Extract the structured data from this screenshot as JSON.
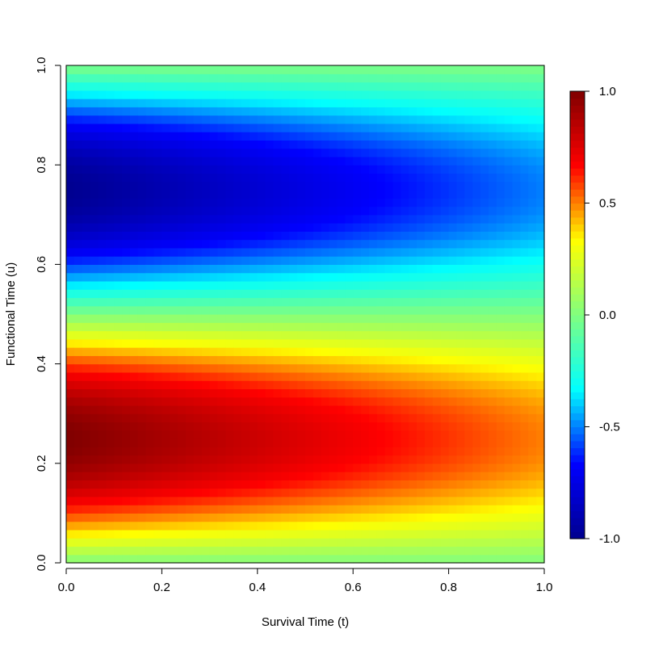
{
  "chart_data": {
    "type": "heatmap",
    "title": "",
    "xlabel": "Survival Time (t)",
    "ylabel": "Functional Time (u)",
    "xlim": [
      0,
      1
    ],
    "ylim": [
      0,
      1
    ],
    "x_ticks": [
      0.0,
      0.2,
      0.4,
      0.6,
      0.8,
      1.0
    ],
    "x_tick_labels": [
      "0.0",
      "0.2",
      "0.4",
      "0.6",
      "0.8",
      "1.0"
    ],
    "y_ticks": [
      0.0,
      0.2,
      0.4,
      0.6,
      0.8,
      1.0
    ],
    "y_tick_labels": [
      "0.0",
      "0.2",
      "0.4",
      "0.6",
      "0.8",
      "1.0"
    ],
    "surface": "z = sin(2*pi*u) * (1 - 0.5*t)",
    "z_range": [
      -1,
      1
    ],
    "grid": false,
    "colorbar": {
      "placement": "right",
      "ticks": [
        -1.0,
        -0.5,
        0.0,
        0.5,
        1.0
      ],
      "tick_labels": [
        "-1.0",
        "-0.5",
        "0.0",
        "0.5",
        "1.0"
      ],
      "colormap": "jet",
      "colors": [
        "#00008f",
        "#0000ff",
        "#00ffff",
        "#80ff80",
        "#ffff00",
        "#ff0000",
        "#800000"
      ]
    }
  }
}
